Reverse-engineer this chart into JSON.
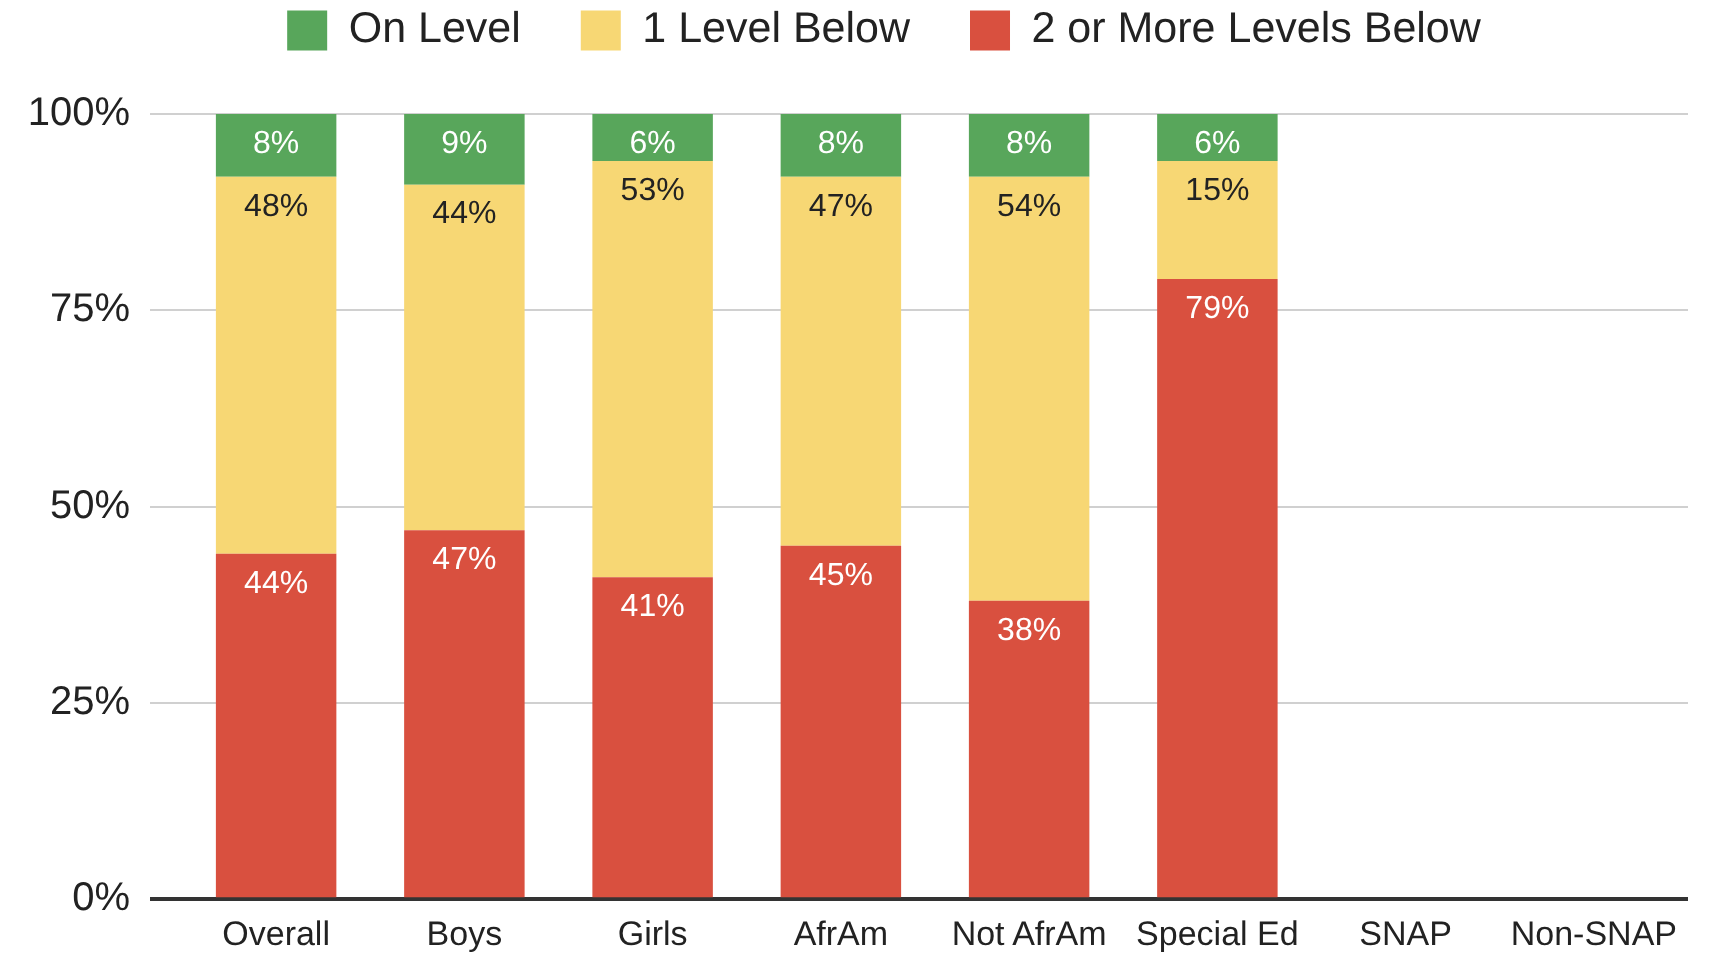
{
  "chart_data": {
    "type": "bar",
    "stacked": true,
    "categories": [
      "Overall",
      "Boys",
      "Girls",
      "AfrAm",
      "Not AfrAm",
      "Special Ed",
      "SNAP",
      "Non-SNAP"
    ],
    "series": [
      {
        "name": "2 or More Levels Below",
        "color": "#d9503f",
        "values": [
          44,
          47,
          41,
          45,
          38,
          79,
          null,
          null
        ],
        "value_labels": [
          "44%",
          "47%",
          "41%",
          "45%",
          "38%",
          "79%",
          null,
          null
        ]
      },
      {
        "name": "1 Level Below",
        "color": "#f7d774",
        "values": [
          48,
          44,
          53,
          47,
          54,
          15,
          null,
          null
        ],
        "value_labels": [
          "48%",
          "44%",
          "53%",
          "47%",
          "54%",
          "15%",
          null,
          null
        ]
      },
      {
        "name": "On Level",
        "color": "#58a65b",
        "values": [
          8,
          9,
          6,
          8,
          8,
          6,
          null,
          null
        ],
        "value_labels": [
          "8%",
          "9%",
          "6%",
          "8%",
          "8%",
          "6%",
          null,
          null
        ]
      }
    ],
    "ylim": [
      0,
      100
    ],
    "yticks": [
      {
        "value": 0,
        "label": "0%"
      },
      {
        "value": 25,
        "label": "25%"
      },
      {
        "value": 50,
        "label": "50%"
      },
      {
        "value": 75,
        "label": "75%"
      },
      {
        "value": 100,
        "label": "100%"
      }
    ],
    "grid": "y",
    "legend": "top"
  }
}
